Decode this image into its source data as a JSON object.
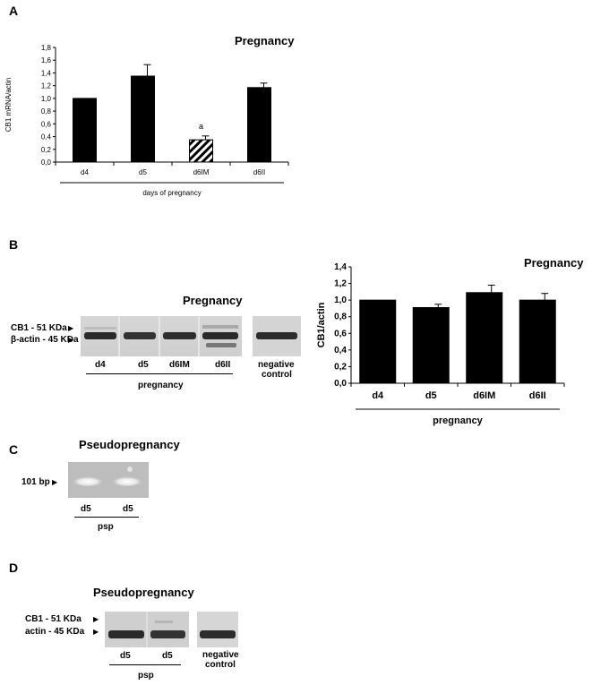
{
  "panels": {
    "A": {
      "letter": "A",
      "title": "Pregnancy",
      "ylabel": "CB1 mRNA/actin",
      "group_label": "days of pregnancy",
      "annotation": "a"
    },
    "B": {
      "letter": "B",
      "blot_title": "Pregnancy",
      "band_labels": [
        "CB1 - 51 KDa",
        "β-actin - 45 KDa"
      ],
      "lanes": [
        "d4",
        "d5",
        "d6IM",
        "d6II"
      ],
      "group_label": "pregnancy",
      "control_label_1": "negative",
      "control_label_2": "control",
      "chart_title": "Pregnancy",
      "chart_ylabel": "CB1/actin",
      "chart_group_label": "pregnancy"
    },
    "C": {
      "letter": "C",
      "title": "Pseudopregnancy",
      "band_label": "101 bp",
      "lanes": [
        "d5",
        "d5"
      ],
      "group_label": "psp"
    },
    "D": {
      "letter": "D",
      "title": "Pseudopregnancy",
      "band_labels": [
        "CB1 - 51 KDa",
        "actin - 45 KDa"
      ],
      "lanes": [
        "d5",
        "d5"
      ],
      "group_label": "psp",
      "control_label_1": "negative",
      "control_label_2": "control"
    }
  },
  "chart_data": [
    {
      "type": "bar",
      "title": "Pregnancy",
      "ylabel": "CB1 mRNA/actin",
      "xlabel": "days of pregnancy",
      "categories": [
        "d4",
        "d5",
        "d6IM",
        "d6II"
      ],
      "values": [
        1.0,
        1.35,
        0.35,
        1.17
      ],
      "errors": [
        0,
        0.18,
        0.06,
        0.07
      ],
      "patterns": [
        "solid",
        "solid",
        "hatched",
        "solid"
      ],
      "ylim": [
        0,
        1.8
      ],
      "yticks": [
        "0,0",
        "0,2",
        "0,4",
        "0,6",
        "0,8",
        "1,0",
        "1,2",
        "1,4",
        "1,6",
        "1,8"
      ],
      "annotations": [
        {
          "category": "d6IM",
          "text": "a"
        }
      ]
    },
    {
      "type": "bar",
      "title": "Pregnancy",
      "ylabel": "CB1/actin",
      "xlabel": "pregnancy",
      "categories": [
        "d4",
        "d5",
        "d6IM",
        "d6II"
      ],
      "values": [
        1.0,
        0.91,
        1.09,
        1.0
      ],
      "errors": [
        0,
        0.04,
        0.09,
        0.08
      ],
      "ylim": [
        0,
        1.4
      ],
      "yticks": [
        "0,0",
        "0,2",
        "0,4",
        "0,6",
        "0,8",
        "1,0",
        "1,2",
        "1,4"
      ]
    }
  ]
}
